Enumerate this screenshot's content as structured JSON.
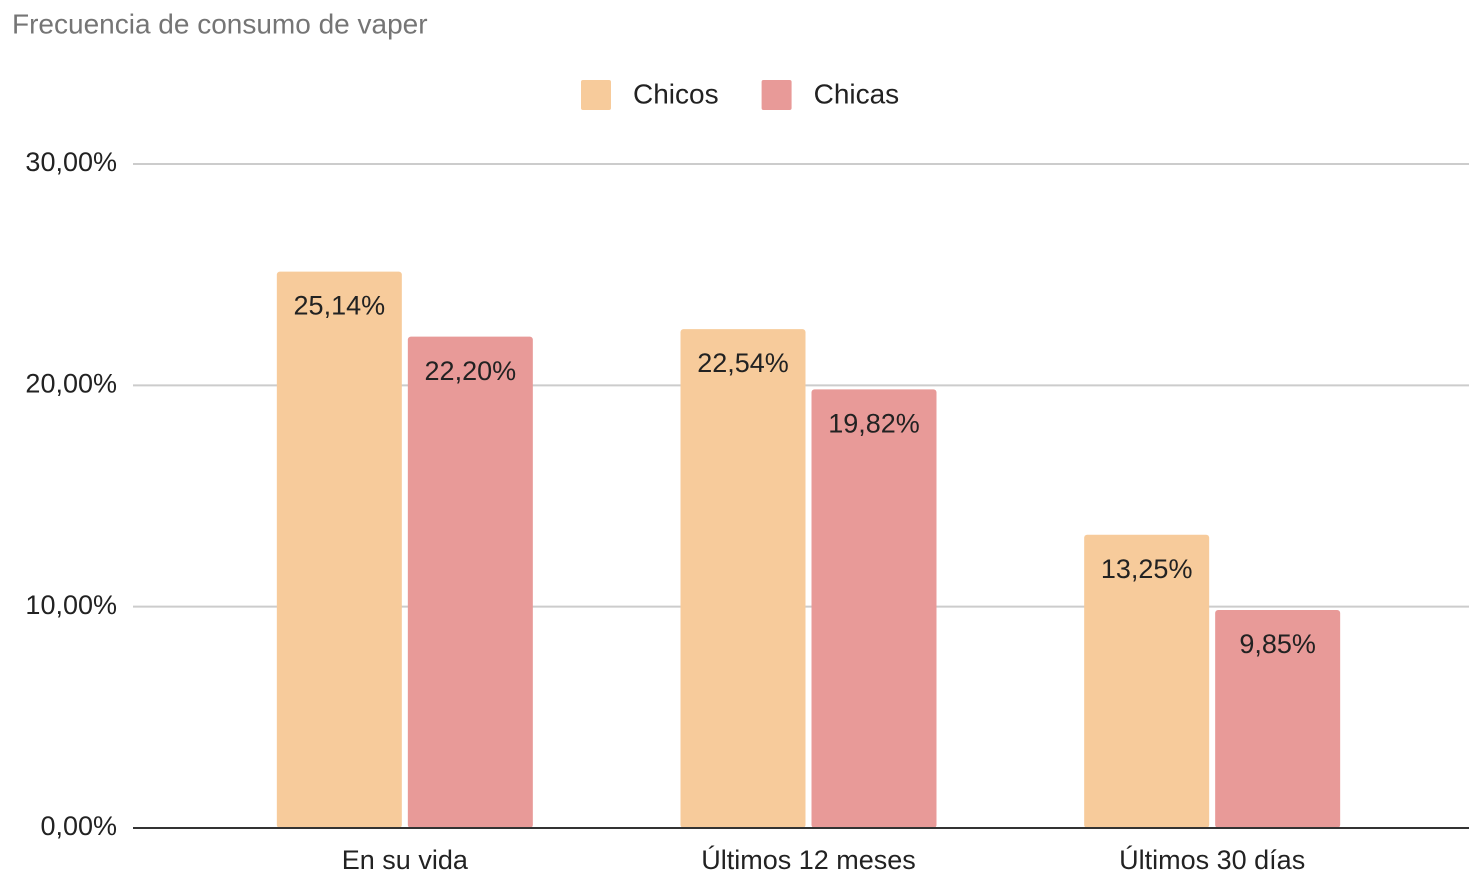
{
  "chart_data": {
    "type": "bar",
    "title": "Frecuencia de consumo de vaper",
    "categories": [
      "En su vida",
      "Últimos 12 meses",
      "Últimos 30 días"
    ],
    "series": [
      {
        "name": "Chicos",
        "color": "#f7cb9b",
        "values": [
          25.14,
          22.54,
          13.25
        ],
        "value_labels": [
          "25,14%",
          "22,54%",
          "13,25%"
        ]
      },
      {
        "name": "Chicas",
        "color": "#e89a98",
        "values": [
          22.2,
          19.82,
          9.85
        ],
        "value_labels": [
          "22,20%",
          "19,82%",
          "9,85%"
        ]
      }
    ],
    "ylim": [
      0,
      30
    ],
    "yticks": [
      {
        "value": 0,
        "label": "0,00%"
      },
      {
        "value": 10,
        "label": "10,00%"
      },
      {
        "value": 20,
        "label": "20,00%"
      },
      {
        "value": 30,
        "label": "30,00%"
      }
    ],
    "grid": true,
    "legend": "top"
  }
}
